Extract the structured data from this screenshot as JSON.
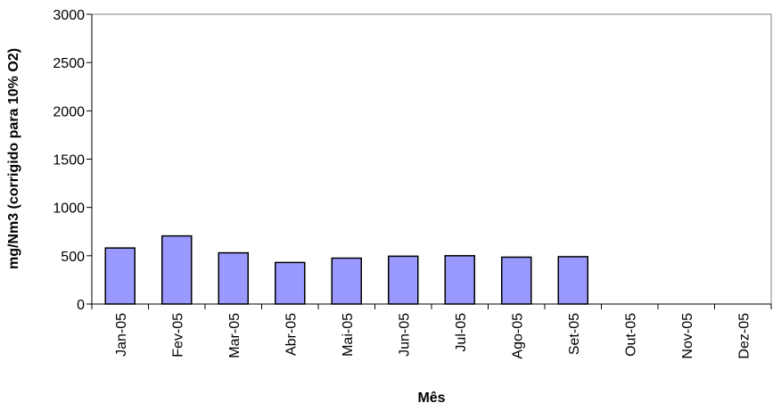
{
  "chart_data": {
    "type": "bar",
    "categories": [
      "Jan-05",
      "Fev-05",
      "Mar-05",
      "Abr-05",
      "Mai-05",
      "Jun-05",
      "Jul-05",
      "Ago-05",
      "Set-05",
      "Out-05",
      "Nov-05",
      "Dez-05"
    ],
    "values": [
      580,
      705,
      530,
      430,
      475,
      495,
      500,
      485,
      490,
      null,
      null,
      null
    ],
    "xlabel": "Mês",
    "ylabel": "mg/Nm3 (corrigido para 10% O2)",
    "ylim": [
      0,
      3000
    ],
    "yticks": [
      0,
      500,
      1000,
      1500,
      2000,
      2500,
      3000
    ],
    "grid": false,
    "legend": "none",
    "bar_color": "#9999ff"
  }
}
